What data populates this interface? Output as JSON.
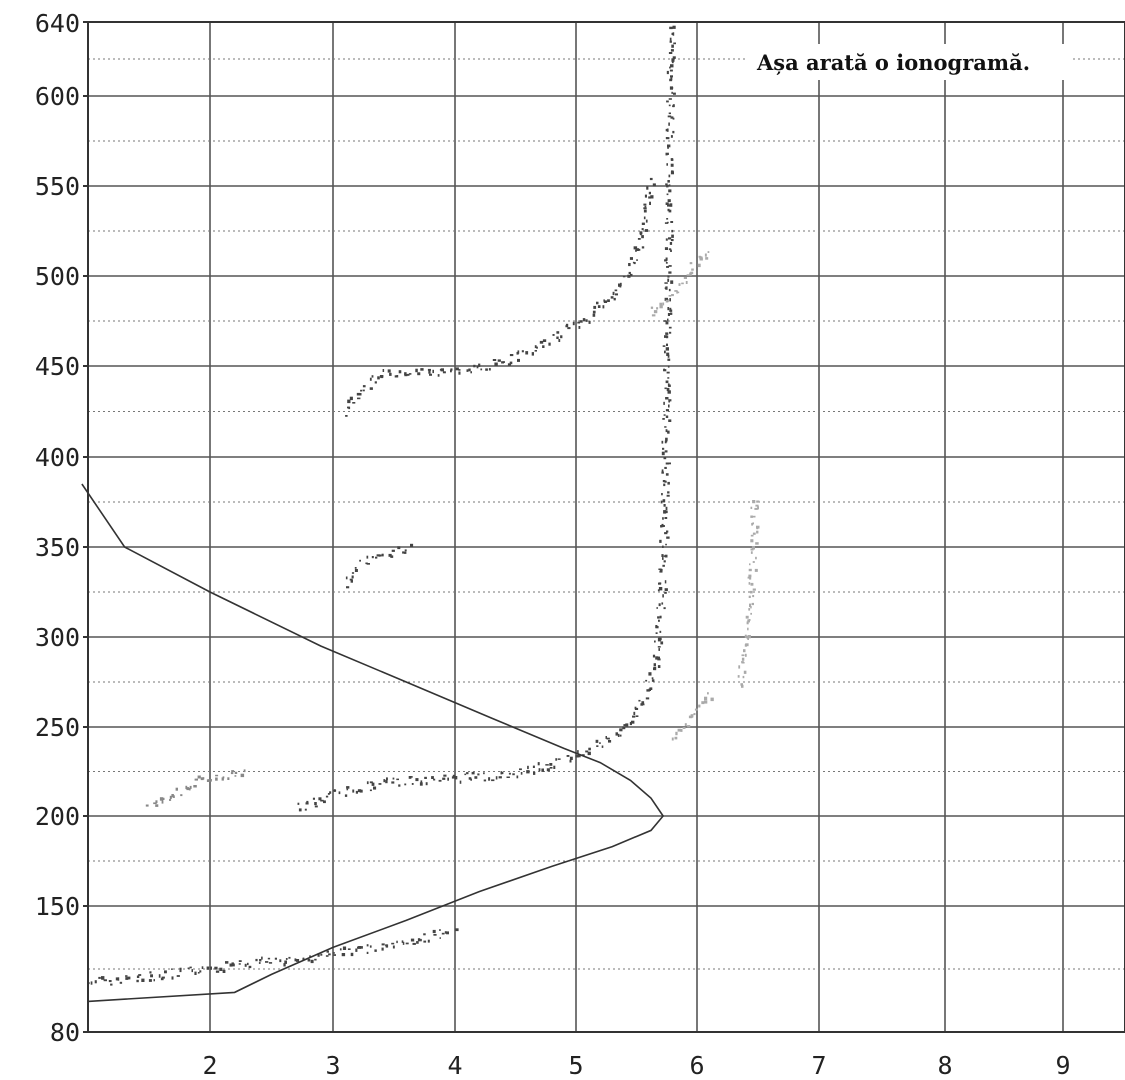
{
  "chart_data": {
    "type": "scatter",
    "title": "Așa arată o ionogramă.",
    "xlabel": "",
    "ylabel": "",
    "xlim": [
      1.0,
      9.5
    ],
    "ylim": [
      80,
      640
    ],
    "x_ticks": [
      "2",
      "3",
      "4",
      "5",
      "6",
      "7",
      "8",
      "9"
    ],
    "y_ticks": [
      "80",
      "150",
      "200",
      "250",
      "300",
      "350",
      "400",
      "450",
      "500",
      "550",
      "600",
      "640"
    ],
    "grid": true,
    "series": [
      {
        "kind": "line",
        "color": "#333333",
        "points": [
          [
            0.95,
            385
          ],
          [
            1.3,
            350
          ],
          [
            2.0,
            325
          ],
          [
            2.9,
            295
          ],
          [
            3.6,
            275
          ],
          [
            4.3,
            255
          ],
          [
            4.9,
            238
          ],
          [
            5.2,
            230
          ],
          [
            5.45,
            220
          ],
          [
            5.62,
            210
          ],
          [
            5.72,
            200
          ],
          [
            5.62,
            192
          ],
          [
            5.3,
            183
          ],
          [
            4.8,
            172
          ],
          [
            4.2,
            158
          ],
          [
            3.6,
            142
          ],
          [
            3.0,
            127
          ],
          [
            2.5,
            112
          ],
          [
            2.2,
            102
          ],
          [
            1.0,
            97
          ]
        ]
      },
      {
        "kind": "trace",
        "color": "#444444",
        "points": [
          [
            1.0,
            108
          ],
          [
            1.3,
            110
          ],
          [
            1.6,
            112
          ],
          [
            1.9,
            115
          ],
          [
            2.2,
            118
          ],
          [
            2.5,
            120
          ],
          [
            2.8,
            122
          ],
          [
            3.1,
            125
          ],
          [
            3.4,
            128
          ],
          [
            3.7,
            132
          ],
          [
            4.0,
            137
          ]
        ]
      },
      {
        "kind": "trace",
        "color": "#444444",
        "points": [
          [
            2.7,
            205
          ],
          [
            2.9,
            210
          ],
          [
            3.1,
            215
          ],
          [
            3.4,
            219
          ],
          [
            3.7,
            221
          ],
          [
            4.0,
            222
          ],
          [
            4.3,
            223
          ],
          [
            4.6,
            226
          ],
          [
            4.9,
            232
          ],
          [
            5.1,
            238
          ],
          [
            5.3,
            245
          ],
          [
            5.45,
            253
          ],
          [
            5.55,
            265
          ],
          [
            5.65,
            285
          ],
          [
            5.7,
            320
          ],
          [
            5.72,
            360
          ],
          [
            5.73,
            400
          ],
          [
            5.74,
            450
          ],
          [
            5.76,
            520
          ],
          [
            5.78,
            640
          ]
        ]
      },
      {
        "kind": "trace",
        "color": "#444444",
        "points": [
          [
            3.1,
            425
          ],
          [
            3.2,
            435
          ],
          [
            3.35,
            445
          ],
          [
            3.6,
            448
          ],
          [
            3.9,
            448
          ],
          [
            4.2,
            450
          ],
          [
            4.5,
            455
          ],
          [
            4.7,
            462
          ],
          [
            4.9,
            470
          ],
          [
            5.1,
            478
          ],
          [
            5.3,
            490
          ],
          [
            5.45,
            505
          ],
          [
            5.55,
            525
          ],
          [
            5.62,
            555
          ]
        ]
      },
      {
        "kind": "trace",
        "color": "#444444",
        "points": [
          [
            3.1,
            330
          ],
          [
            3.2,
            340
          ],
          [
            3.35,
            345
          ],
          [
            3.5,
            348
          ],
          [
            3.65,
            350
          ]
        ]
      },
      {
        "kind": "trace",
        "color": "#aaaaaa",
        "points": [
          [
            5.8,
            245
          ],
          [
            5.9,
            252
          ],
          [
            6.0,
            262
          ],
          [
            6.1,
            270
          ]
        ]
      },
      {
        "kind": "trace",
        "color": "#aaaaaa",
        "points": [
          [
            6.35,
            275
          ],
          [
            6.4,
            300
          ],
          [
            6.45,
            340
          ],
          [
            6.47,
            380
          ]
        ]
      },
      {
        "kind": "trace",
        "color": "#aaaaaa",
        "points": [
          [
            5.6,
            480
          ],
          [
            5.8,
            490
          ],
          [
            5.95,
            505
          ],
          [
            6.1,
            515
          ]
        ]
      },
      {
        "kind": "trace",
        "color": "#888888",
        "points": [
          [
            1.5,
            205
          ],
          [
            1.7,
            212
          ],
          [
            1.9,
            220
          ],
          [
            2.1,
            224
          ],
          [
            2.3,
            226
          ]
        ]
      }
    ]
  }
}
